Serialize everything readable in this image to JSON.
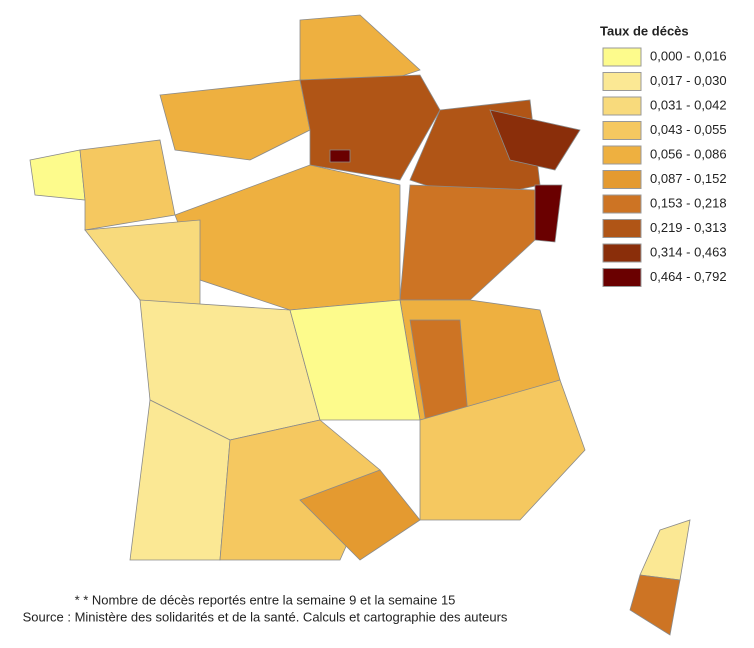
{
  "legend": {
    "title": "Taux de décès",
    "items": [
      {
        "label": "0,000 - 0,016",
        "color": "#fdfb8c"
      },
      {
        "label": "0,017 - 0,030",
        "color": "#fbe894"
      },
      {
        "label": "0,031 - 0,042",
        "color": "#f8da7c"
      },
      {
        "label": "0,043 - 0,055",
        "color": "#f5c860"
      },
      {
        "label": "0,056 - 0,086",
        "color": "#eeb040"
      },
      {
        "label": "0,087 - 0,152",
        "color": "#e49a30"
      },
      {
        "label": "0,153 - 0,218",
        "color": "#cd7424"
      },
      {
        "label": "0,219 - 0,313",
        "color": "#b05516"
      },
      {
        "label": "0,314 - 0,463",
        "color": "#8a2e0a"
      },
      {
        "label": "0,464 - 0,792",
        "color": "#6a0000"
      }
    ]
  },
  "map": {
    "regions": [
      {
        "class": 0
      },
      {
        "class": 3
      },
      {
        "class": 4
      },
      {
        "class": 4
      },
      {
        "class": 7
      },
      {
        "class": 7
      },
      {
        "class": 8
      },
      {
        "class": 6
      },
      {
        "class": 4
      },
      {
        "class": 2
      },
      {
        "class": 1
      },
      {
        "class": 4
      },
      {
        "class": 6
      },
      {
        "class": 1
      },
      {
        "class": 3
      },
      {
        "class": 0
      },
      {
        "class": 5
      },
      {
        "class": 3
      },
      {
        "class": 9
      },
      {
        "class": 9
      },
      {
        "class": 1
      },
      {
        "class": 6
      }
    ]
  },
  "footnote": {
    "lines": [
      "* * Nombre de décès reportés entre la semaine 9 et la semaine 15",
      "Source : Ministère des solidarités et de la santé. Calculs et cartographie des auteurs"
    ]
  }
}
